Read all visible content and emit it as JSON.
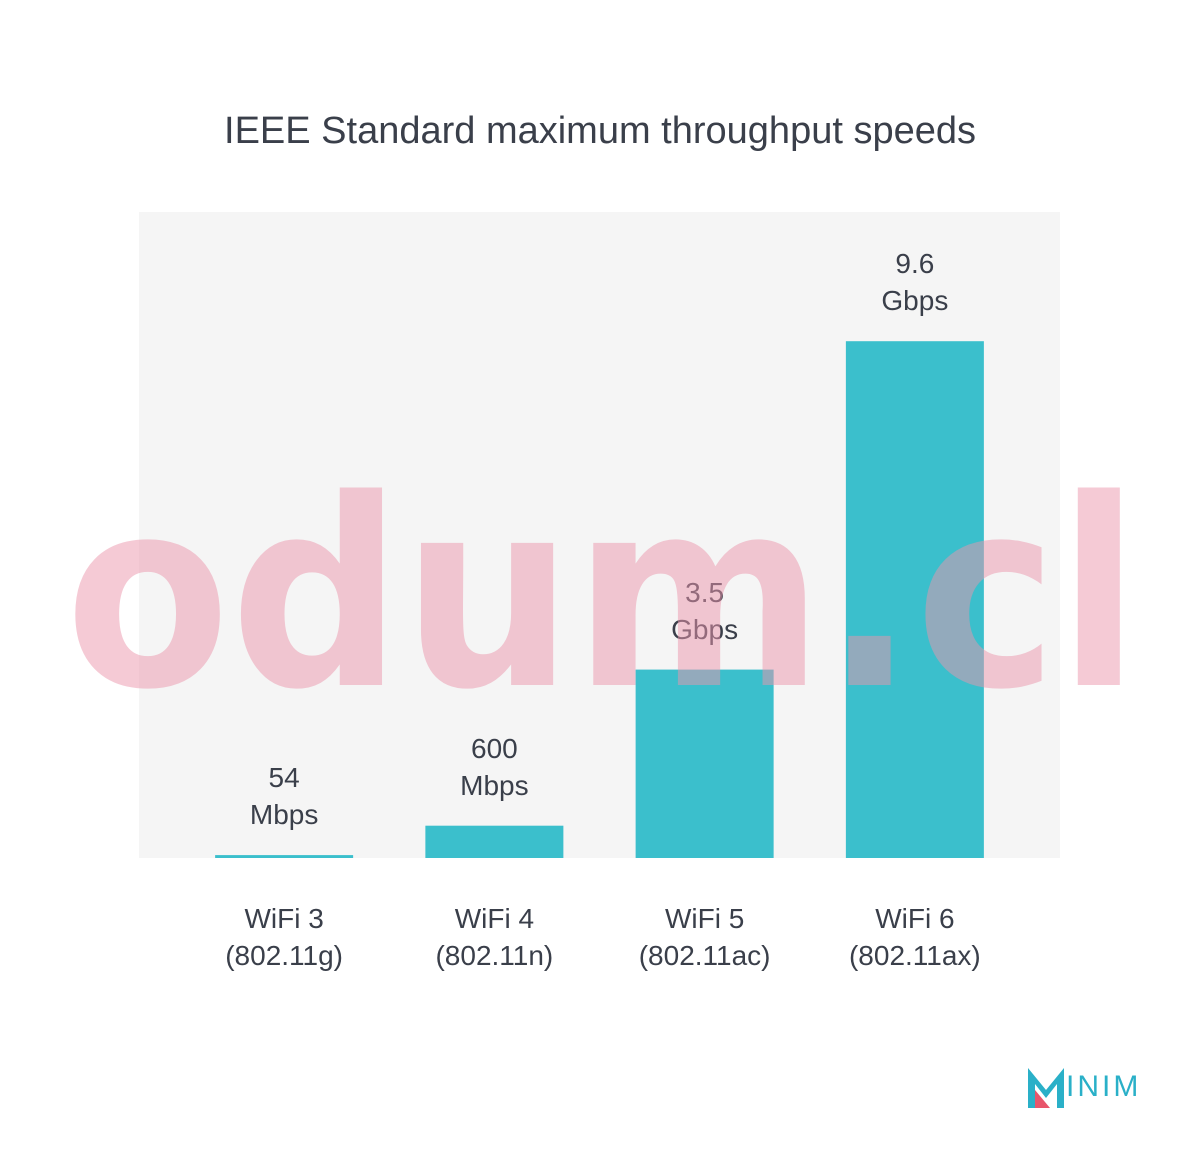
{
  "chart_data": {
    "type": "bar",
    "title": "IEEE Standard maximum throughput speeds",
    "categories": [
      "WiFi 3\n(802.11g)",
      "WiFi 4\n(802.11n)",
      "WiFi 5\n(802.11ac)",
      "WiFi 6\n(802.11ax)"
    ],
    "values": [
      54,
      600,
      3500,
      9600
    ],
    "value_labels": [
      "54\nMbps",
      "600\nMbps",
      "3.5\nGbps",
      "9.6\nGbps"
    ],
    "color": "#3bbfcc",
    "ylim": [
      0,
      12000
    ],
    "grid": false
  },
  "watermark": "odum.cl",
  "brand": "INIM"
}
